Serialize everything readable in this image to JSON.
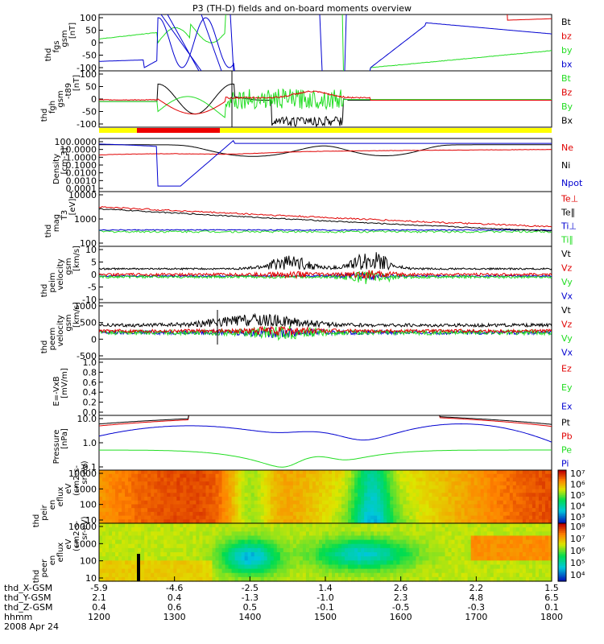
{
  "title": "P3 (TH-D) fields and on-board moments overview",
  "colors": {
    "black": "#000000",
    "red": "#e00000",
    "green": "#22dd22",
    "blue": "#0000d0",
    "yellow": "#ffff00",
    "bar_red": "#ee0000"
  },
  "panels": [
    {
      "id": "fgs",
      "ylabel": [
        "thd",
        "fgs",
        "gsm",
        "[nT]"
      ],
      "yticks": [
        "100",
        "50",
        "0",
        "-50",
        "-100"
      ],
      "legend": [
        "Bt",
        "bz",
        "by",
        "bx"
      ],
      "legend_colors": [
        "black",
        "red",
        "green",
        "blue"
      ]
    },
    {
      "id": "fgh",
      "ylabel": [
        "thd",
        "fgh",
        "gsm",
        "-t89",
        "[nT]"
      ],
      "yticks": [
        "100",
        "50",
        "0",
        "-50",
        "-100"
      ],
      "legend": [
        "Bt",
        "Bz",
        "By",
        "Bx"
      ],
      "legend_colors": [
        "green",
        "red",
        "green",
        "black"
      ]
    },
    {
      "id": "density",
      "ylabel": [
        "Density",
        "[cm-3]"
      ],
      "yticks": [
        "100.0000",
        "10.0000",
        "1.0000",
        "0.1000",
        "0.0100",
        "0.0010",
        "0.0001"
      ],
      "legend": [
        "Ne",
        "Ni",
        "Npot"
      ],
      "legend_colors": [
        "red",
        "black",
        "blue"
      ]
    },
    {
      "id": "temp",
      "ylabel": [
        "thd",
        "mag",
        "T3",
        "[eV]"
      ],
      "yticks": [
        "10000",
        "1000",
        "100"
      ],
      "legend": [
        "Te⊥",
        "Te∥",
        "Ti⊥",
        "Ti∥"
      ],
      "legend_colors": [
        "red",
        "black",
        "blue",
        "green"
      ]
    },
    {
      "id": "peim",
      "ylabel": [
        "thd",
        "peim",
        "velocity",
        "gsm",
        "[km/s]"
      ],
      "yticks": [
        "10",
        "5",
        "0",
        "-5",
        "-10"
      ],
      "legend": [
        "Vt",
        "Vz",
        "Vy",
        "Vx"
      ],
      "legend_colors": [
        "black",
        "red",
        "green",
        "blue"
      ]
    },
    {
      "id": "peem",
      "ylabel": [
        "thd",
        "peem",
        "velocity",
        "gsm",
        "[km/s]"
      ],
      "yticks": [
        "1000",
        "500",
        "0",
        "-500"
      ],
      "legend": [
        "Vt",
        "Vz",
        "Vy",
        "Vx"
      ],
      "legend_colors": [
        "black",
        "red",
        "green",
        "blue"
      ]
    },
    {
      "id": "efield",
      "ylabel": [
        "E=-VxB",
        "[mV/m]"
      ],
      "yticks": [
        "1.0",
        "0.8",
        "0.6",
        "0.4",
        "0.2",
        "0.0"
      ],
      "legend": [
        "Ez",
        "Ey",
        "Ex"
      ],
      "legend_colors": [
        "red",
        "green",
        "blue"
      ]
    },
    {
      "id": "pressure",
      "ylabel": [
        "Pressure",
        "[nPa]"
      ],
      "yticks": [
        "10.0",
        "1.0",
        "0.1"
      ],
      "legend": [
        "Pt",
        "Pb",
        "Pe",
        "Pi"
      ],
      "legend_colors": [
        "black",
        "red",
        "green",
        "blue"
      ]
    },
    {
      "id": "peir",
      "ylabel": [
        "thd",
        "peir",
        "en",
        "eflux",
        "eV",
        "(cm2-s-",
        "sr-eV)"
      ],
      "yticks": [
        "10000",
        "1000",
        "100",
        "10"
      ],
      "colorbar": [
        "10⁷",
        "10⁶",
        "10⁵",
        "10⁴",
        "10³"
      ]
    },
    {
      "id": "peer",
      "ylabel": [
        "thd",
        "peer",
        "en",
        "eflux",
        "eV",
        "(cm2-s-",
        "sr-eV)"
      ],
      "yticks": [
        "10000",
        "1000",
        "100",
        "10"
      ],
      "colorbar": [
        "10⁸",
        "10⁷",
        "10⁶",
        "10⁵",
        "10⁴"
      ]
    }
  ],
  "footer": {
    "rows": [
      {
        "label": "thd_X-GSM",
        "values": [
          "-5.9",
          "-4.6",
          "-2.5",
          "1.4",
          "2.6",
          "2.2",
          "1.5"
        ]
      },
      {
        "label": "thd_Y-GSM",
        "values": [
          "2.1",
          "0.4",
          "-1.3",
          "-1.0",
          "2.3",
          "4.8",
          "6.5"
        ]
      },
      {
        "label": "thd_Z-GSM",
        "values": [
          "0.4",
          "0.6",
          "0.5",
          "-0.1",
          "-0.5",
          "-0.3",
          "0.1"
        ]
      },
      {
        "label": "hhmm",
        "values": [
          "1200",
          "1300",
          "1400",
          "1500",
          "1600",
          "1700",
          "1800"
        ]
      }
    ],
    "date": "2008 Apr 24"
  },
  "chart_data": {
    "type": "line",
    "title": "P3 (TH-D) fields and on-board moments overview",
    "x": [
      "1200",
      "1300",
      "1400",
      "1500",
      "1600",
      "1700",
      "1800"
    ],
    "xlabel": "hhmm",
    "date": "2008 Apr 24",
    "series": [
      {
        "name": "bx",
        "panel": "fgs",
        "values": [
          -70,
          -100,
          -40,
          100,
          100,
          55,
          35
        ]
      },
      {
        "name": "by",
        "panel": "fgs",
        "values": [
          20,
          30,
          100,
          100,
          -100,
          -60,
          -30
        ]
      },
      {
        "name": "Ne",
        "panel": "density",
        "values": [
          2.5,
          0.1,
          0.5,
          0.6,
          0.8,
          5,
          8
        ]
      },
      {
        "name": "Ni",
        "panel": "density",
        "values": [
          30,
          20,
          1.5,
          70,
          2,
          60,
          50
        ]
      },
      {
        "name": "Pi",
        "panel": "pressure",
        "values": [
          3,
          4,
          0.06,
          2,
          0.06,
          8,
          2.5
        ]
      },
      {
        "name": "Pe",
        "panel": "pressure",
        "values": [
          0.5,
          0.3,
          0.04,
          0.15,
          0.04,
          0.3,
          0.6
        ]
      }
    ],
    "annotations": [
      "yellow/red region bar below fgh panel"
    ]
  }
}
